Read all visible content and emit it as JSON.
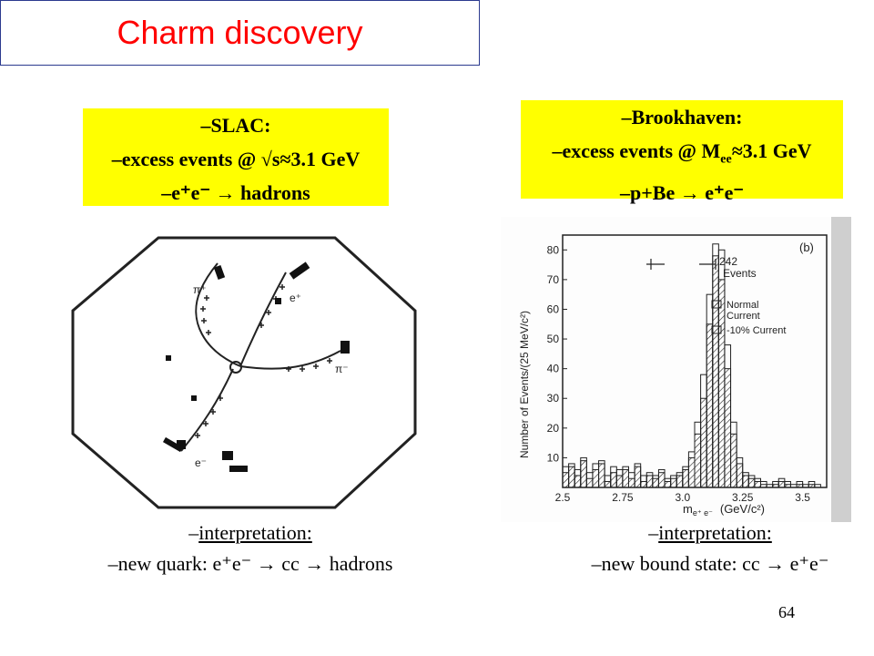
{
  "title": "Charm discovery",
  "slac": {
    "line1": "–SLAC:",
    "line2": "–excess events @ √s≈3.1 GeV",
    "line3": "–e⁺e⁻ → hadrons",
    "interp_label": "interpretation:",
    "interp_prefix": "–",
    "interp_line": "–new quark: e⁺e⁻ → cc → hadrons",
    "event_labels": [
      "π⁺",
      "e⁺",
      "π⁻",
      "e⁻"
    ]
  },
  "brookhaven": {
    "line1": "–Brookhaven:",
    "line2_pre": "–excess events @ M",
    "line2_sub": "ee",
    "line2_post": "≈3.1 GeV",
    "line3": "–p+Be → e⁺e⁻",
    "interp_label": "interpretation:",
    "interp_prefix": "–",
    "interp_line": "–new bound state: cc → e⁺e⁻"
  },
  "chart_data": {
    "type": "bar",
    "panel_label": "(b)",
    "ylabel": "Number of Events/(25 MeV/c²)",
    "xlabel_pre": "m",
    "xlabel_sub": "e⁺ e⁻",
    "xlabel_unit": "(GeV/c²)",
    "xlim": [
      2.5,
      3.6
    ],
    "ylim": [
      0,
      85
    ],
    "x_ticks": [
      "2.5",
      "2.75",
      "3.0",
      "3.25",
      "3.5"
    ],
    "y_ticks": [
      "10",
      "20",
      "30",
      "40",
      "50",
      "60",
      "70",
      "80"
    ],
    "annotation_count": "242",
    "annotation_text": "Events",
    "legend": [
      {
        "label_1": "Normal",
        "label_2": "Current",
        "pattern": "hatched"
      },
      {
        "label_1": "-10% Current",
        "label_2": "",
        "pattern": "open"
      }
    ],
    "bin_width_gev": 0.025,
    "bins_start": 2.5,
    "series": [
      {
        "name": "Normal Current",
        "values": [
          5,
          7,
          4,
          9,
          3,
          6,
          8,
          2,
          5,
          4,
          6,
          3,
          7,
          2,
          4,
          3,
          5,
          2,
          3,
          4,
          6,
          10,
          18,
          30,
          55,
          78,
          70,
          40,
          18,
          8,
          4,
          3,
          2,
          1,
          0,
          1,
          2,
          1,
          0,
          1,
          0,
          1,
          0,
          0
        ]
      },
      {
        "name": "-10% Current",
        "values": [
          7,
          8,
          6,
          10,
          5,
          8,
          9,
          4,
          7,
          6,
          7,
          5,
          8,
          4,
          5,
          4,
          6,
          3,
          4,
          5,
          7,
          12,
          22,
          38,
          65,
          82,
          80,
          48,
          22,
          10,
          5,
          4,
          3,
          2,
          1,
          2,
          3,
          2,
          1,
          2,
          1,
          2,
          1,
          0
        ]
      }
    ]
  },
  "page_number": "64"
}
